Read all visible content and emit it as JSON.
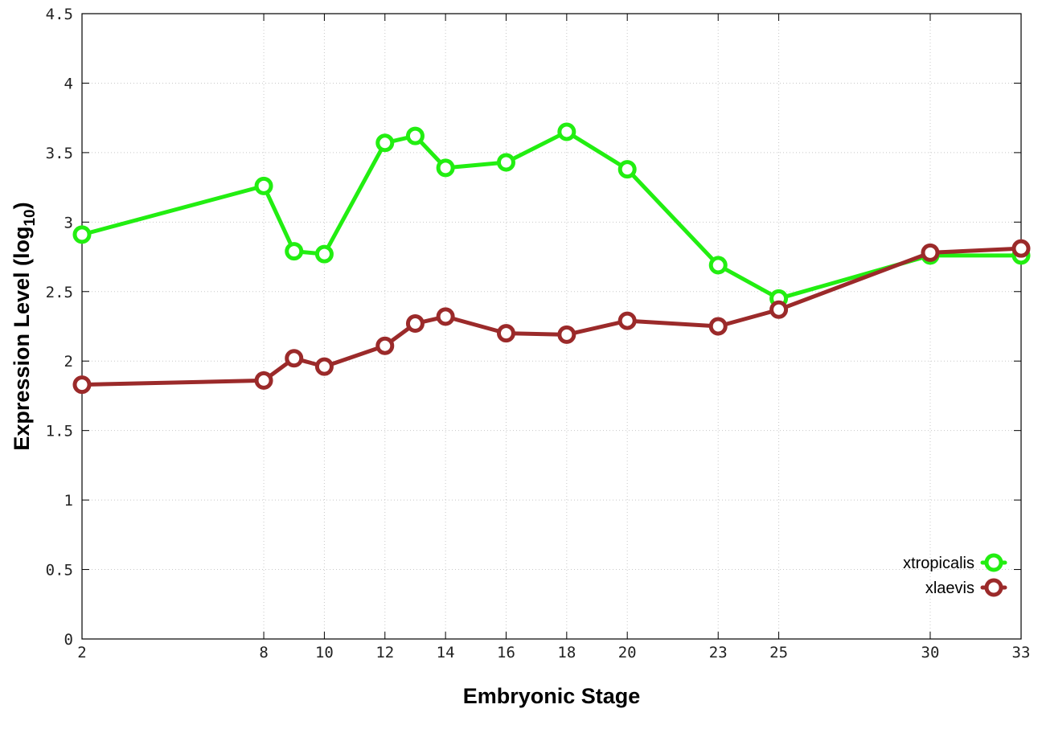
{
  "chart_data": {
    "type": "line",
    "xlabel": "Embryonic Stage",
    "ylabel": "Expression Level (log",
    "ylabel_subscript": "10",
    "ylabel_close": ")",
    "x": [
      2,
      8,
      9,
      10,
      12,
      13,
      14,
      16,
      18,
      20,
      23,
      25,
      30,
      33
    ],
    "x_ticks": [
      2,
      8,
      10,
      12,
      14,
      16,
      18,
      20,
      23,
      25,
      30,
      33
    ],
    "x_tick_labels": [
      "2",
      "8",
      "10",
      "12",
      "14",
      "16",
      "18",
      "20",
      "23",
      "25",
      "30",
      "33"
    ],
    "y_ticks": [
      0,
      0.5,
      1,
      1.5,
      2,
      2.5,
      3,
      3.5,
      4,
      4.5
    ],
    "y_tick_labels": [
      "0",
      "0.5",
      "1",
      "1.5",
      "2",
      "2.5",
      "3",
      "3.5",
      "4",
      "4.5"
    ],
    "xlim": [
      2,
      33
    ],
    "ylim": [
      0,
      4.5
    ],
    "grid": true,
    "legend_position": "bottom-right",
    "series": [
      {
        "name": "xtropicalis",
        "color": "#22ee11",
        "values": [
          2.91,
          3.26,
          2.79,
          2.77,
          3.57,
          3.62,
          3.39,
          3.43,
          3.65,
          3.38,
          2.69,
          2.45,
          2.76,
          2.76
        ]
      },
      {
        "name": "xlaevis",
        "color": "#9b2a2a",
        "values": [
          1.83,
          1.86,
          2.02,
          1.96,
          2.11,
          2.27,
          2.32,
          2.2,
          2.19,
          2.29,
          2.25,
          2.37,
          2.78,
          2.81
        ]
      }
    ]
  }
}
